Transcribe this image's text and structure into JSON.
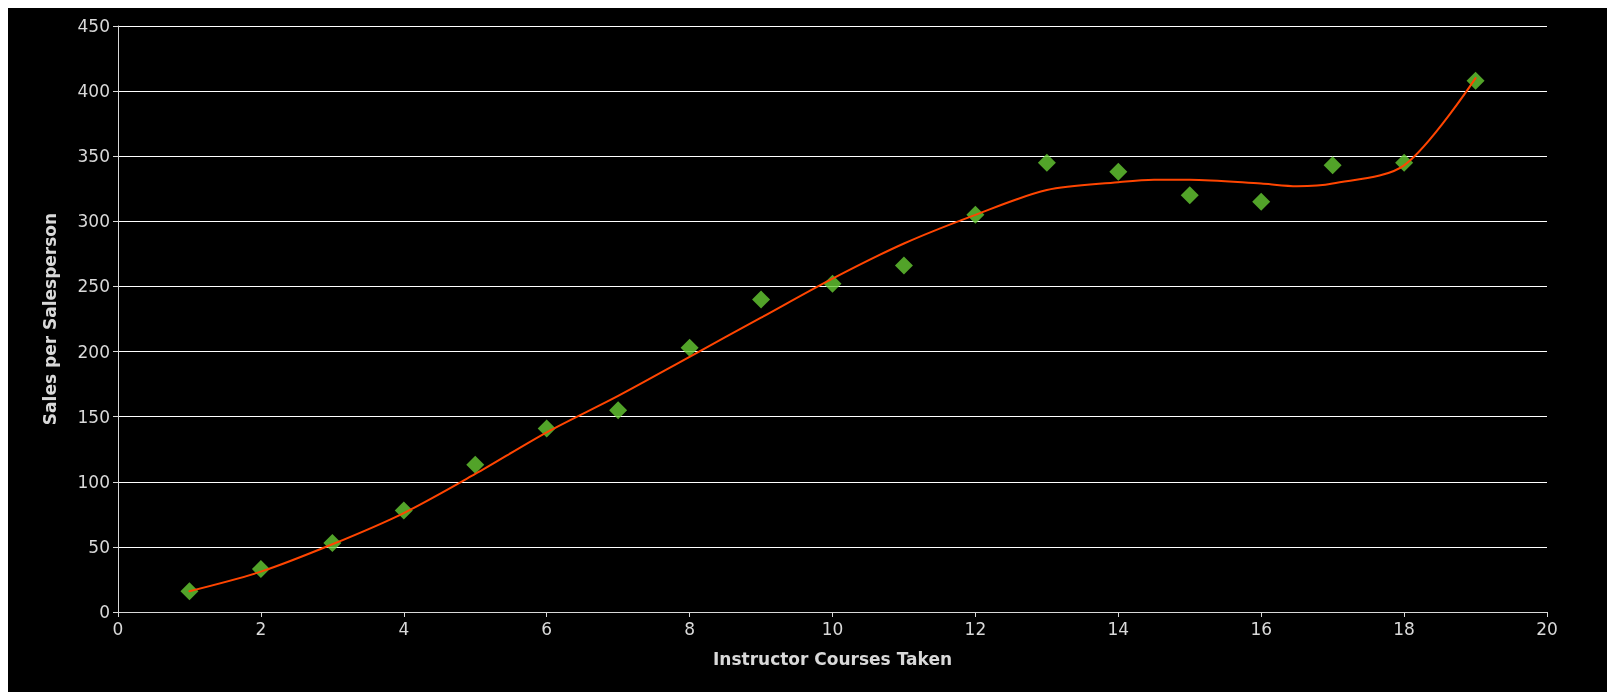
{
  "chart_data": {
    "type": "scatter",
    "xlabel": "Instructor Courses Taken",
    "ylabel": "Sales per Salesperson",
    "xlim": [
      0,
      20
    ],
    "xticks": [
      0,
      2,
      4,
      6,
      8,
      10,
      12,
      14,
      16,
      18,
      20
    ],
    "ylim": [
      0,
      450
    ],
    "yticks": [
      0,
      50,
      100,
      150,
      200,
      250,
      300,
      350,
      400,
      450
    ],
    "grid": "y",
    "series": [
      {
        "type": "scatter",
        "color": "#66cc33",
        "marker": "diamond",
        "x": [
          1,
          2,
          3,
          4,
          5,
          6,
          7,
          8,
          9,
          10,
          11,
          12,
          13,
          14,
          15,
          16,
          17,
          18,
          19
        ],
        "values": [
          16,
          33,
          53,
          78,
          113,
          141,
          155,
          203,
          240,
          252,
          266,
          305,
          345,
          338,
          320,
          315,
          343,
          345,
          408
        ]
      },
      {
        "type": "line",
        "color": "#ff4500",
        "marker": "none",
        "line_style": "solid",
        "x": [
          1,
          2,
          3,
          4,
          5,
          6,
          7,
          8,
          9,
          10,
          11,
          12,
          13,
          14,
          14.5,
          15,
          16,
          16.5,
          17,
          18,
          19
        ],
        "values": [
          16,
          31,
          52,
          76,
          106,
          138,
          166,
          196,
          226,
          256,
          283,
          305,
          324,
          330,
          332,
          332,
          329,
          327,
          329,
          343,
          410
        ]
      }
    ]
  }
}
